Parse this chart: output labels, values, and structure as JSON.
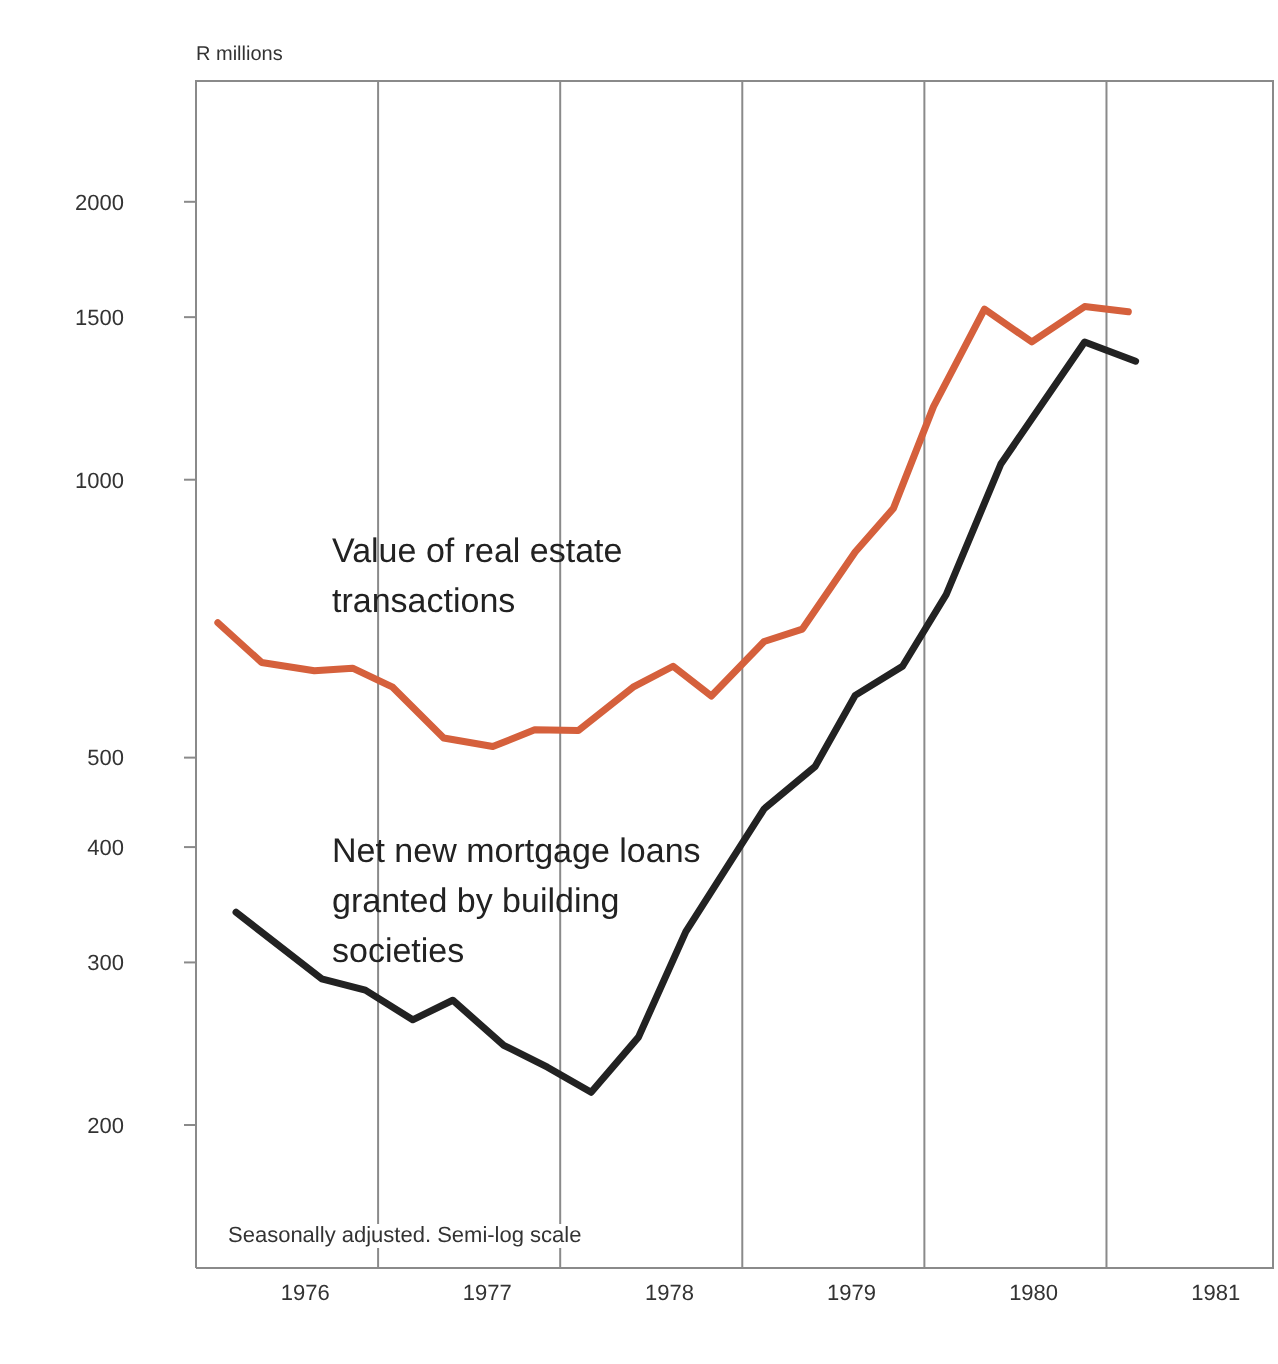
{
  "chart_data": {
    "type": "line",
    "ylabel": "R millions",
    "log": "y",
    "ylim": [
      140,
      2710
    ],
    "yticks": [
      200,
      300,
      400,
      500,
      1000,
      1500,
      2000
    ],
    "xlim": [
      1975.4,
      1981.32
    ],
    "xticks": [
      1976,
      1977,
      1978,
      1979,
      1980,
      1981
    ],
    "marker": "none",
    "line_style": "solid",
    "ref_lines": [
      {
        "axis": "x",
        "value": 1976.4,
        "color": "#8a8a8a"
      },
      {
        "axis": "x",
        "value": 1977.4,
        "color": "#8a8a8a"
      },
      {
        "axis": "x",
        "value": 1978.4,
        "color": "#8a8a8a"
      },
      {
        "axis": "x",
        "value": 1979.4,
        "color": "#8a8a8a"
      },
      {
        "axis": "x",
        "value": 1980.4,
        "color": "#8a8a8a"
      }
    ],
    "annotations": [
      "Seasonally adjusted. Semi-log scale"
    ],
    "series": [
      {
        "name": "Value of real estate transactions",
        "color": "#d5603c",
        "x": [
          1975.52,
          1975.76,
          1976.05,
          1976.26,
          1976.48,
          1976.76,
          1977.03,
          1977.26,
          1977.5,
          1977.8,
          1978.02,
          1978.23,
          1978.52,
          1978.73,
          1979.02,
          1979.23,
          1979.45,
          1979.73,
          1979.99,
          1980.28,
          1980.52
        ],
        "values": [
          700,
          634,
          621,
          625,
          596,
          525,
          514,
          536,
          535,
          596,
          628,
          583,
          668,
          689,
          835,
          931,
          1200,
          1530,
          1410,
          1540,
          1520
        ]
      },
      {
        "name": "Net new mortgage loans granted by building societies",
        "color": "#222222",
        "x": [
          1975.62,
          1976.09,
          1976.33,
          1976.59,
          1976.81,
          1977.09,
          1977.33,
          1977.57,
          1977.83,
          1978.09,
          1978.52,
          1978.8,
          1979.02,
          1979.28,
          1979.52,
          1979.82,
          1980.28,
          1980.56
        ],
        "values": [
          340,
          288,
          280,
          260,
          273,
          244,
          231,
          217,
          249,
          324,
          440,
          489,
          584,
          628,
          751,
          1040,
          1410,
          1344
        ]
      }
    ]
  }
}
